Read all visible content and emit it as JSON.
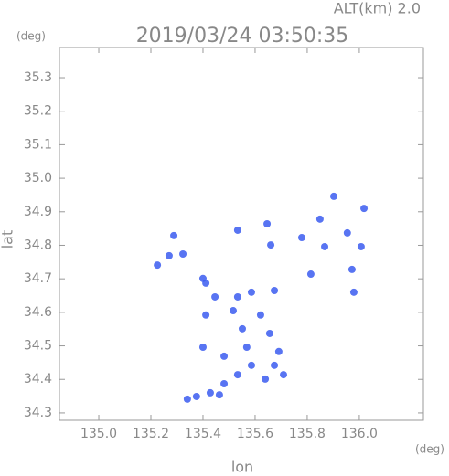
{
  "chart_data": {
    "type": "scatter",
    "title": "2019/03/24 03:50:35",
    "subtitle": "ALT(km) 2.0",
    "y_unit": "(deg)",
    "x_unit": "(deg)",
    "xlabel": "lon",
    "ylabel": "lat",
    "color": "#3b5cf0",
    "x": [
      135.411,
      135.446,
      135.533,
      135.586,
      135.674,
      135.516,
      135.621,
      135.551,
      135.656,
      135.568,
      135.691,
      135.586,
      135.674,
      135.533,
      135.639,
      135.481,
      135.428,
      135.375,
      135.463,
      135.34,
      135.411,
      135.4,
      135.481,
      135.709,
      135.902,
      135.849,
      135.954,
      136.007,
      135.779,
      135.867,
      135.972,
      135.979,
      135.814,
      136.018,
      135.288,
      135.323,
      135.27,
      135.225,
      135.4,
      135.646,
      135.66,
      135.533
    ],
    "values": [
      34.687,
      34.646,
      34.646,
      34.66,
      34.665,
      34.605,
      34.592,
      34.551,
      34.537,
      34.496,
      34.483,
      34.442,
      34.442,
      34.414,
      34.401,
      34.387,
      34.36,
      34.349,
      34.354,
      34.341,
      34.592,
      34.496,
      34.469,
      34.414,
      34.946,
      34.878,
      34.837,
      34.796,
      34.823,
      34.796,
      34.728,
      34.66,
      34.714,
      34.91,
      34.829,
      34.774,
      34.769,
      34.741,
      34.701,
      34.864,
      34.801,
      34.845
    ],
    "xlim": [
      134.849,
      136.246
    ],
    "ylim": [
      34.278,
      35.39
    ],
    "xticks": [
      {
        "value": 135,
        "label": "135.0"
      },
      135.2,
      135.4,
      135.6,
      135.8,
      {
        "value": 136,
        "label": "136.0"
      }
    ],
    "yticks": [
      34.3,
      34.4,
      34.5,
      34.6,
      34.7,
      34.8,
      34.9,
      {
        "value": 35,
        "label": "35.0"
      },
      35.1,
      35.2,
      35.3
    ]
  }
}
